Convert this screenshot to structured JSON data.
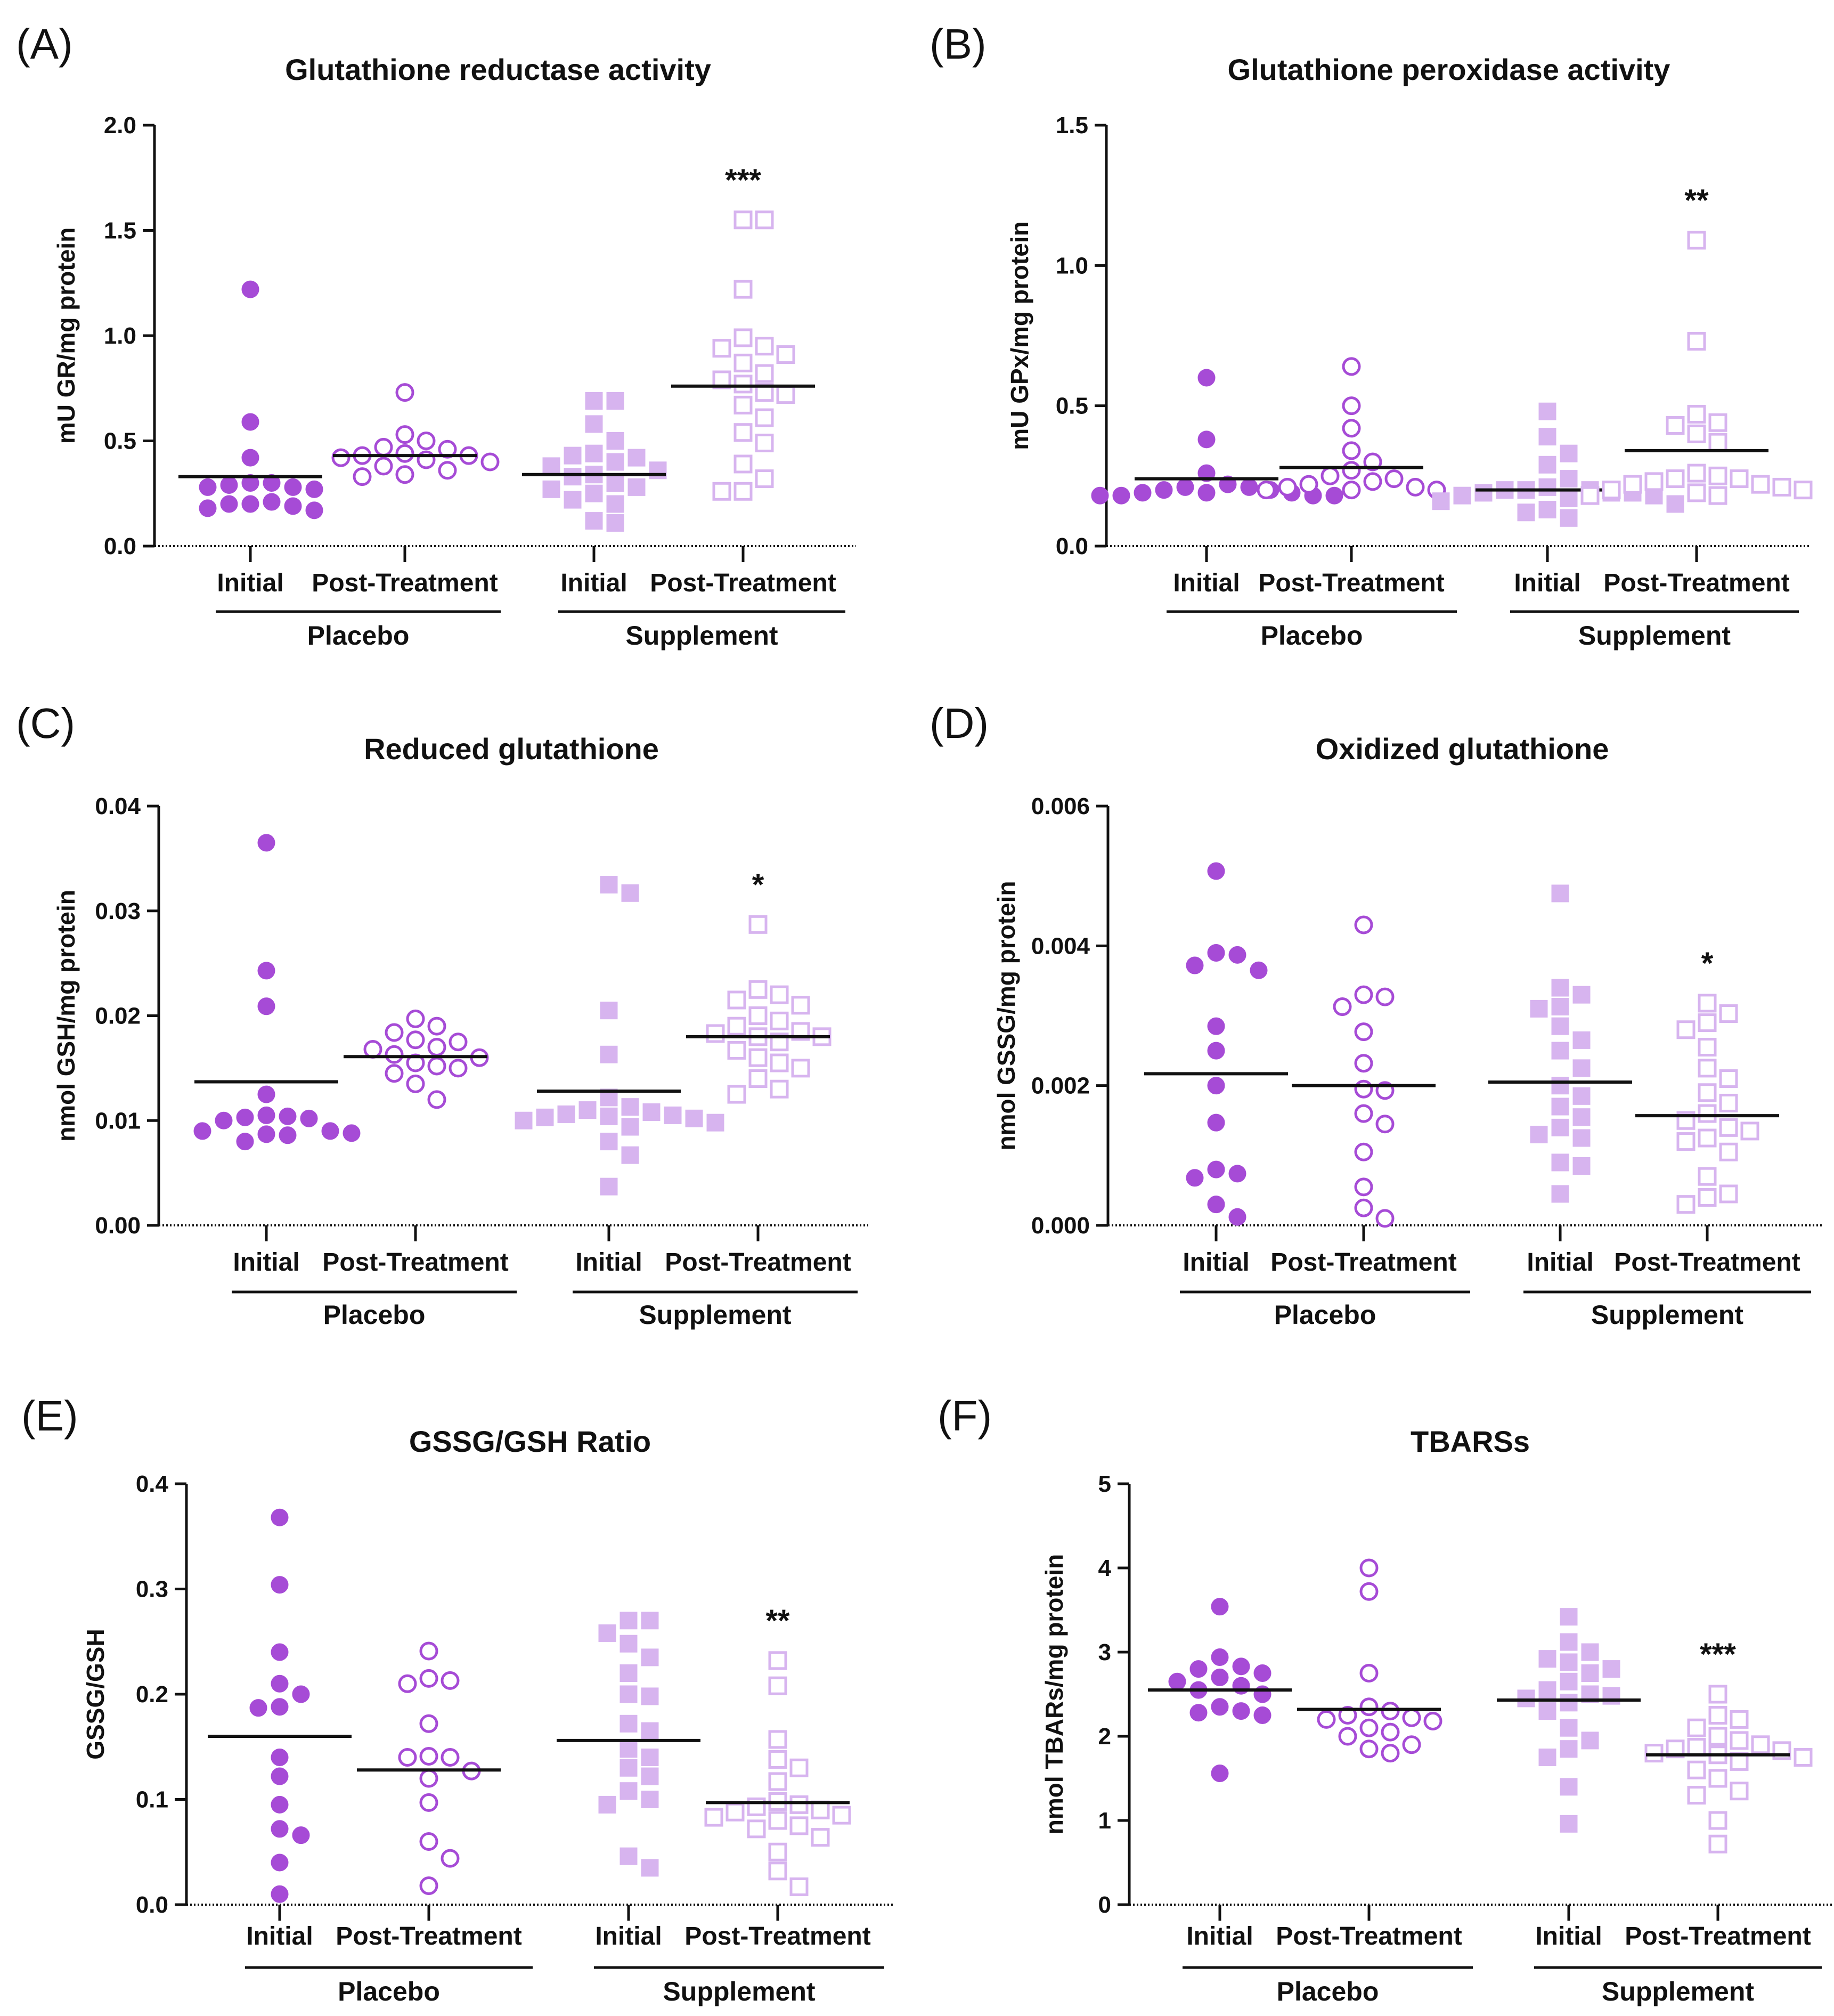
{
  "colors": {
    "placebo": "#a64bd6",
    "supplement": "#d7b4ef",
    "axis": "#111111",
    "mean_line": "#111111"
  },
  "chart_data": [
    {
      "panel": "(A)",
      "type": "scatter",
      "title": "Glutathione reductase activity",
      "ylabel": "mU GR/mg protein",
      "ylim": [
        0,
        2.0
      ],
      "yticks": [
        "0.0",
        "0.5",
        "1.0",
        "1.5",
        "2.0"
      ],
      "categories": [
        "Initial",
        "Post-Treatment",
        "Initial",
        "Post-Treatment"
      ],
      "groups": [
        "Placebo",
        "Supplement"
      ],
      "series": [
        {
          "name": "Placebo Initial",
          "marker": "circle-filled",
          "mean": 0.33,
          "values": [
            1.22,
            0.59,
            0.42,
            0.3,
            0.3,
            0.29,
            0.28,
            0.28,
            0.27,
            0.2,
            0.21,
            0.2,
            0.19,
            0.18,
            0.17
          ]
        },
        {
          "name": "Placebo Post-Treatment",
          "marker": "circle-open",
          "mean": 0.43,
          "values": [
            0.73,
            0.53,
            0.5,
            0.47,
            0.46,
            0.44,
            0.43,
            0.43,
            0.42,
            0.41,
            0.4,
            0.38,
            0.36,
            0.34,
            0.33
          ]
        },
        {
          "name": "Supplement Initial",
          "marker": "square-filled",
          "mean": 0.34,
          "values": [
            0.69,
            0.69,
            0.58,
            0.5,
            0.44,
            0.43,
            0.42,
            0.4,
            0.38,
            0.36,
            0.34,
            0.33,
            0.3,
            0.28,
            0.27,
            0.25,
            0.22,
            0.2,
            0.12,
            0.11
          ]
        },
        {
          "name": "Supplement Post-Treatment",
          "marker": "square-open",
          "mean": 0.76,
          "significance": "***",
          "values": [
            1.55,
            1.55,
            1.22,
            0.99,
            0.95,
            0.94,
            0.91,
            0.87,
            0.82,
            0.79,
            0.77,
            0.73,
            0.72,
            0.67,
            0.61,
            0.54,
            0.49,
            0.39,
            0.32,
            0.26,
            0.26
          ]
        }
      ]
    },
    {
      "panel": "(B)",
      "type": "scatter",
      "title": "Glutathione peroxidase activity",
      "ylabel": "mU GPx/mg protein",
      "ylim": [
        0,
        1.5
      ],
      "yticks": [
        "0.0",
        "0.5",
        "1.0",
        "1.5"
      ],
      "categories": [
        "Initial",
        "Post-Treatment",
        "Initial",
        "Post-Treatment"
      ],
      "groups": [
        "Placebo",
        "Supplement"
      ],
      "series": [
        {
          "name": "Placebo Initial",
          "marker": "circle-filled",
          "mean": 0.24,
          "values": [
            0.6,
            0.38,
            0.26,
            0.22,
            0.21,
            0.21,
            0.2,
            0.2,
            0.19,
            0.19,
            0.19,
            0.18,
            0.18,
            0.18,
            0.18
          ]
        },
        {
          "name": "Placebo Post-Treatment",
          "marker": "circle-open",
          "mean": 0.28,
          "values": [
            0.64,
            0.5,
            0.42,
            0.34,
            0.3,
            0.27,
            0.25,
            0.24,
            0.23,
            0.22,
            0.21,
            0.21,
            0.2,
            0.2,
            0.2
          ]
        },
        {
          "name": "Supplement Initial",
          "marker": "square-filled",
          "mean": 0.2,
          "values": [
            0.48,
            0.39,
            0.33,
            0.29,
            0.24,
            0.21,
            0.2,
            0.2,
            0.2,
            0.19,
            0.19,
            0.19,
            0.18,
            0.18,
            0.17,
            0.16,
            0.15,
            0.13,
            0.12,
            0.1
          ]
        },
        {
          "name": "Supplement Post-Treatment",
          "marker": "square-open",
          "mean": 0.34,
          "significance": "**",
          "values": [
            1.09,
            0.73,
            0.47,
            0.44,
            0.43,
            0.4,
            0.37,
            0.26,
            0.25,
            0.24,
            0.24,
            0.23,
            0.22,
            0.22,
            0.21,
            0.2,
            0.2,
            0.19,
            0.18,
            0.18
          ]
        }
      ]
    },
    {
      "panel": "(C)",
      "type": "scatter",
      "title": "Reduced glutathione",
      "ylabel": "nmol GSH/mg protein",
      "ylim": [
        0,
        0.04
      ],
      "yticks": [
        "0.00",
        "0.01",
        "0.02",
        "0.03",
        "0.04"
      ],
      "categories": [
        "Initial",
        "Post-Treatment",
        "Initial",
        "Post-Treatment"
      ],
      "groups": [
        "Placebo",
        "Supplement"
      ],
      "series": [
        {
          "name": "Placebo Initial",
          "marker": "circle-filled",
          "mean": 0.0137,
          "values": [
            0.0365,
            0.0243,
            0.0209,
            0.0125,
            0.0105,
            0.0104,
            0.0103,
            0.0102,
            0.01,
            0.009,
            0.009,
            0.0088,
            0.0087,
            0.0086,
            0.008
          ]
        },
        {
          "name": "Placebo Post-Treatment",
          "marker": "circle-open",
          "mean": 0.0161,
          "values": [
            0.0197,
            0.019,
            0.0184,
            0.0177,
            0.0175,
            0.017,
            0.0168,
            0.0163,
            0.016,
            0.0155,
            0.0152,
            0.015,
            0.0145,
            0.0135,
            0.012
          ]
        },
        {
          "name": "Supplement Initial",
          "marker": "square-filled",
          "mean": 0.0128,
          "values": [
            0.0325,
            0.0317,
            0.0205,
            0.0163,
            0.0122,
            0.0113,
            0.011,
            0.0108,
            0.0106,
            0.0105,
            0.0104,
            0.0103,
            0.0102,
            0.01,
            0.0098,
            0.0094,
            0.008,
            0.0067,
            0.0037
          ]
        },
        {
          "name": "Supplement Post-Treatment",
          "marker": "square-open",
          "mean": 0.018,
          "significance": "*",
          "values": [
            0.0287,
            0.0225,
            0.022,
            0.0215,
            0.021,
            0.02,
            0.0195,
            0.019,
            0.0185,
            0.0183,
            0.018,
            0.018,
            0.0175,
            0.0167,
            0.016,
            0.0155,
            0.015,
            0.014,
            0.013,
            0.0125
          ]
        }
      ]
    },
    {
      "panel": "(D)",
      "type": "scatter",
      "title": "Oxidized glutathione",
      "ylabel": "nmol GSSG/mg protein",
      "ylim": [
        0,
        0.006
      ],
      "yticks": [
        "0.000",
        "0.002",
        "0.004",
        "0.006"
      ],
      "categories": [
        "Initial",
        "Post-Treatment",
        "Initial",
        "Post-Treatment"
      ],
      "groups": [
        "Placebo",
        "Supplement"
      ],
      "series": [
        {
          "name": "Placebo Initial",
          "marker": "circle-filled",
          "mean": 0.00217,
          "values": [
            0.00507,
            0.0039,
            0.00387,
            0.00372,
            0.00365,
            0.00285,
            0.0025,
            0.002,
            0.00147,
            0.0008,
            0.00074,
            0.00068,
            0.0003,
            0.00012
          ]
        },
        {
          "name": "Placebo Post-Treatment",
          "marker": "circle-open",
          "mean": 0.002,
          "values": [
            0.0043,
            0.0033,
            0.00327,
            0.00313,
            0.00277,
            0.00232,
            0.00195,
            0.00193,
            0.0016,
            0.00145,
            0.00105,
            0.00055,
            0.00025,
            0.0001
          ]
        },
        {
          "name": "Supplement Initial",
          "marker": "square-filled",
          "mean": 0.00205,
          "values": [
            0.00475,
            0.0034,
            0.0033,
            0.00313,
            0.0031,
            0.00285,
            0.00265,
            0.0025,
            0.00225,
            0.002,
            0.00185,
            0.0017,
            0.00155,
            0.0014,
            0.0013,
            0.00125,
            0.0009,
            0.00085,
            0.00045
          ]
        },
        {
          "name": "Supplement Post-Treatment",
          "marker": "square-open",
          "mean": 0.00157,
          "significance": "*",
          "values": [
            0.00318,
            0.00303,
            0.0029,
            0.0028,
            0.00255,
            0.00225,
            0.0021,
            0.0019,
            0.00175,
            0.0016,
            0.0015,
            0.0014,
            0.00135,
            0.00125,
            0.0012,
            0.00105,
            0.0007,
            0.00045,
            0.0004,
            0.0003
          ]
        }
      ]
    },
    {
      "panel": "(E)",
      "type": "scatter",
      "title": "GSSG/GSH Ratio",
      "ylabel": "GSSG/GSH",
      "ylim": [
        0,
        0.4
      ],
      "yticks": [
        "0.0",
        "0.1",
        "0.2",
        "0.3",
        "0.4"
      ],
      "categories": [
        "Initial",
        "Post-Treatment",
        "Initial",
        "Post-Treatment"
      ],
      "groups": [
        "Placebo",
        "Supplement"
      ],
      "series": [
        {
          "name": "Placebo Initial",
          "marker": "circle-filled",
          "mean": 0.16,
          "values": [
            0.368,
            0.304,
            0.24,
            0.21,
            0.2,
            0.188,
            0.187,
            0.14,
            0.122,
            0.095,
            0.072,
            0.066,
            0.04,
            0.01
          ]
        },
        {
          "name": "Placebo Post-Treatment",
          "marker": "circle-open",
          "mean": 0.128,
          "values": [
            0.241,
            0.215,
            0.213,
            0.21,
            0.172,
            0.141,
            0.14,
            0.14,
            0.127,
            0.12,
            0.097,
            0.06,
            0.044,
            0.018
          ]
        },
        {
          "name": "Supplement Initial",
          "marker": "square-filled",
          "mean": 0.156,
          "values": [
            0.27,
            0.27,
            0.258,
            0.248,
            0.235,
            0.22,
            0.2,
            0.198,
            0.172,
            0.165,
            0.148,
            0.14,
            0.13,
            0.122,
            0.108,
            0.1,
            0.095,
            0.046,
            0.035
          ]
        },
        {
          "name": "Supplement Post-Treatment",
          "marker": "square-open",
          "mean": 0.097,
          "significance": "**",
          "values": [
            0.232,
            0.208,
            0.157,
            0.138,
            0.13,
            0.117,
            0.098,
            0.095,
            0.093,
            0.09,
            0.088,
            0.085,
            0.083,
            0.08,
            0.075,
            0.072,
            0.064,
            0.05,
            0.032,
            0.017
          ]
        }
      ]
    },
    {
      "panel": "(F)",
      "type": "scatter",
      "title": "TBARSs",
      "ylabel": "nmol TBARs/mg protein",
      "ylim": [
        0,
        5
      ],
      "yticks": [
        "0",
        "1",
        "2",
        "3",
        "4",
        "5"
      ],
      "categories": [
        "Initial",
        "Post-Treatment",
        "Initial",
        "Post-Treatment"
      ],
      "groups": [
        "Placebo",
        "Supplement"
      ],
      "series": [
        {
          "name": "Placebo Initial",
          "marker": "circle-filled",
          "mean": 2.55,
          "values": [
            3.54,
            2.94,
            2.83,
            2.8,
            2.75,
            2.7,
            2.65,
            2.6,
            2.55,
            2.5,
            2.35,
            2.3,
            2.28,
            2.25,
            1.56
          ]
        },
        {
          "name": "Placebo Post-Treatment",
          "marker": "circle-open",
          "mean": 2.32,
          "values": [
            4.0,
            3.72,
            2.75,
            2.35,
            2.3,
            2.25,
            2.22,
            2.2,
            2.18,
            2.1,
            2.05,
            2.0,
            1.9,
            1.85,
            1.8
          ]
        },
        {
          "name": "Supplement Initial",
          "marker": "square-filled",
          "mean": 2.43,
          "values": [
            3.42,
            3.12,
            3.0,
            2.92,
            2.88,
            2.8,
            2.75,
            2.65,
            2.55,
            2.5,
            2.48,
            2.45,
            2.4,
            2.3,
            2.1,
            1.95,
            1.85,
            1.75,
            1.4,
            0.96
          ]
        },
        {
          "name": "Supplement Post-Treatment",
          "marker": "square-open",
          "mean": 1.78,
          "significance": "***",
          "values": [
            2.5,
            2.25,
            2.2,
            2.1,
            2.0,
            1.95,
            1.9,
            1.87,
            1.85,
            1.83,
            1.8,
            1.78,
            1.75,
            1.7,
            1.6,
            1.5,
            1.35,
            1.3,
            1.0,
            0.72
          ]
        }
      ]
    }
  ]
}
